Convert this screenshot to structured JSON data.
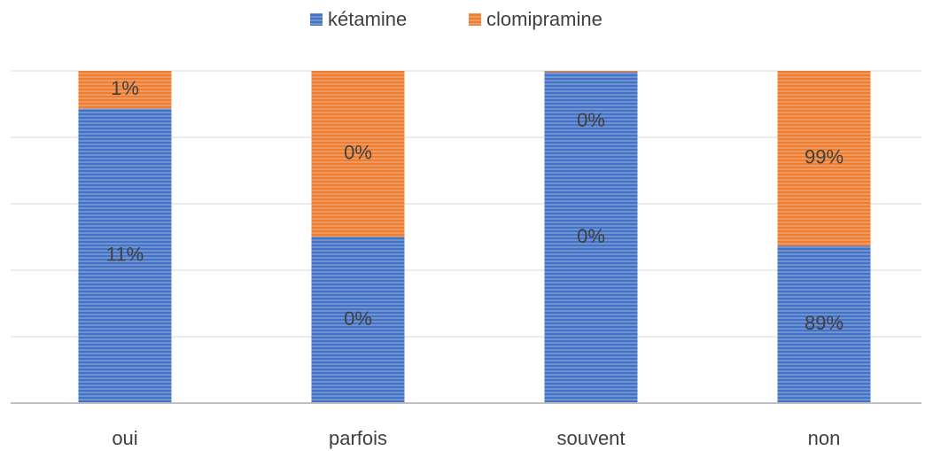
{
  "chart_data": {
    "type": "stacked_percent_bar",
    "categories": [
      "oui",
      "parfois",
      "souvent",
      "non"
    ],
    "series": [
      {
        "name": "kétamine",
        "color": "#4472c4",
        "values": [
          11,
          0.3,
          0.3,
          89
        ],
        "value_labels": [
          "11%",
          "0%",
          "0%",
          "89%"
        ]
      },
      {
        "name": "clomipramine",
        "color": "#ed7d31",
        "values": [
          1.4,
          0.3,
          0.001,
          99
        ],
        "value_labels": [
          "1%",
          "0%",
          "0%",
          "99%"
        ]
      }
    ],
    "ylim": [
      0,
      100
    ],
    "yticks": [
      0,
      20,
      40,
      60,
      80,
      100
    ],
    "grid": true,
    "legend": "top"
  }
}
